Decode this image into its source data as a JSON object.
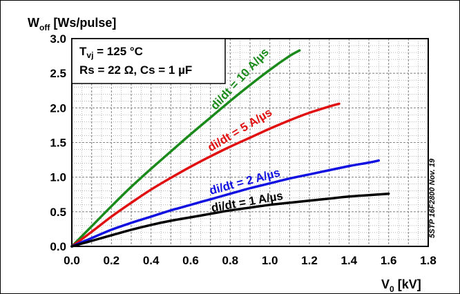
{
  "chart_data": {
    "type": "line",
    "ylabel_main": "W",
    "ylabel_sub": "off",
    "ylabel_unit": " [Ws/pulse]",
    "xlabel_main": "V",
    "xlabel_sub": "0",
    "xlabel_unit": " [kV]",
    "xlim": [
      0,
      1.8
    ],
    "ylim": [
      0,
      3.0
    ],
    "grid": true,
    "x_ticks": [
      "0.0",
      "0.2",
      "0.4",
      "0.6",
      "0.8",
      "1.0",
      "1.2",
      "1.4",
      "1.6",
      "1.8"
    ],
    "y_ticks": [
      "0.0",
      "0.5",
      "1.0",
      "1.5",
      "2.0",
      "2.5",
      "3.0"
    ],
    "conditions": {
      "line1_main": "T",
      "line1_sub": "vj",
      "line1_rest": " = 125 °C",
      "line2": "Rs = 22 Ω, Cs = 1 µF"
    },
    "side_note": "5STP 16F2800 Nov. 19",
    "series": [
      {
        "name": "di/dt = 10 A/µs",
        "color": "#1a8a1a",
        "points": [
          [
            0,
            0
          ],
          [
            0.1,
            0.29
          ],
          [
            0.2,
            0.58
          ],
          [
            0.3,
            0.86
          ],
          [
            0.4,
            1.12
          ],
          [
            0.5,
            1.37
          ],
          [
            0.6,
            1.62
          ],
          [
            0.7,
            1.86
          ],
          [
            0.8,
            2.1
          ],
          [
            0.9,
            2.33
          ],
          [
            1.0,
            2.55
          ],
          [
            1.1,
            2.75
          ],
          [
            1.15,
            2.83
          ]
        ]
      },
      {
        "name": "di/dt = 5 A/µs",
        "color": "#e01010",
        "points": [
          [
            0,
            0
          ],
          [
            0.1,
            0.21
          ],
          [
            0.2,
            0.43
          ],
          [
            0.3,
            0.63
          ],
          [
            0.4,
            0.82
          ],
          [
            0.5,
            0.99
          ],
          [
            0.6,
            1.15
          ],
          [
            0.7,
            1.3
          ],
          [
            0.8,
            1.44
          ],
          [
            0.9,
            1.57
          ],
          [
            1.0,
            1.7
          ],
          [
            1.1,
            1.82
          ],
          [
            1.2,
            1.93
          ],
          [
            1.3,
            2.02
          ],
          [
            1.35,
            2.06
          ]
        ]
      },
      {
        "name": "di/dt = 2 A/µs",
        "color": "#1010e0",
        "points": [
          [
            0,
            0
          ],
          [
            0.1,
            0.12
          ],
          [
            0.2,
            0.24
          ],
          [
            0.3,
            0.34
          ],
          [
            0.4,
            0.43
          ],
          [
            0.5,
            0.52
          ],
          [
            0.6,
            0.6
          ],
          [
            0.7,
            0.68
          ],
          [
            0.8,
            0.76
          ],
          [
            0.9,
            0.84
          ],
          [
            1.0,
            0.91
          ],
          [
            1.1,
            0.98
          ],
          [
            1.2,
            1.04
          ],
          [
            1.3,
            1.1
          ],
          [
            1.4,
            1.16
          ],
          [
            1.5,
            1.21
          ],
          [
            1.55,
            1.24
          ]
        ]
      },
      {
        "name": "di/dt = 1 A/µs",
        "color": "#000000",
        "points": [
          [
            0,
            0
          ],
          [
            0.1,
            0.08
          ],
          [
            0.2,
            0.16
          ],
          [
            0.3,
            0.24
          ],
          [
            0.4,
            0.31
          ],
          [
            0.5,
            0.37
          ],
          [
            0.6,
            0.42
          ],
          [
            0.7,
            0.47
          ],
          [
            0.8,
            0.52
          ],
          [
            0.9,
            0.56
          ],
          [
            1.0,
            0.6
          ],
          [
            1.1,
            0.63
          ],
          [
            1.2,
            0.66
          ],
          [
            1.3,
            0.69
          ],
          [
            1.4,
            0.72
          ],
          [
            1.5,
            0.74
          ],
          [
            1.6,
            0.76
          ]
        ]
      }
    ]
  }
}
